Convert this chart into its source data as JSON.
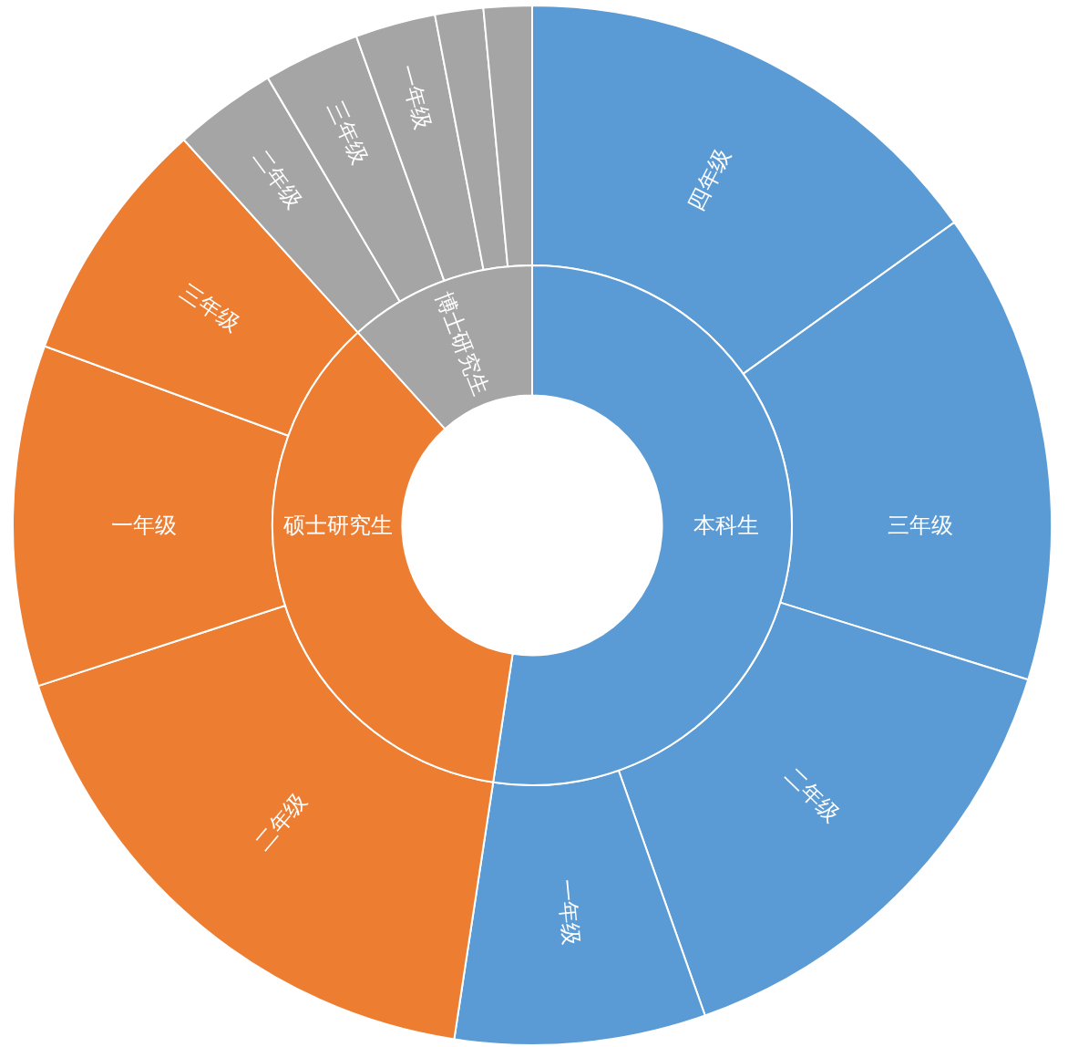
{
  "chart_data": {
    "type": "donut",
    "categories": [
      "四年级",
      "三年级",
      "二年级",
      "一年级",
      "二年级",
      "一年级",
      "三年级",
      "二年级",
      "三年级",
      "一年级",
      null,
      null
    ],
    "series": [
      {
        "values": [
          15.1,
          14.7,
          14.8,
          7.8,
          17.6,
          10.6,
          7.7,
          3.2,
          3.0,
          2.5,
          1.5,
          1.5
        ],
        "colors": [
          "#5b9bd5",
          "#5b9bd5",
          "#5b9bd5",
          "#5b9bd5",
          "#ed7d31",
          "#ed7d31",
          "#ed7d31",
          "#a5a5a5",
          "#a5a5a5",
          "#a5a5a5",
          "#a5a5a5",
          "#a5a5a5"
        ]
      },
      {
        "values": [
          52.4,
          null,
          null,
          null,
          35.9,
          null,
          null,
          11.7,
          null,
          null,
          null,
          null
        ],
        "value_labels": [
          "本科生",
          null,
          null,
          null,
          "硕士研究生",
          null,
          null,
          "博士研究生",
          null,
          null,
          null,
          null
        ],
        "colors": [
          "#5b9bd5",
          null,
          null,
          null,
          "#ed7d31",
          null,
          null,
          "#a5a5a5",
          null,
          null,
          null,
          null
        ]
      }
    ]
  }
}
